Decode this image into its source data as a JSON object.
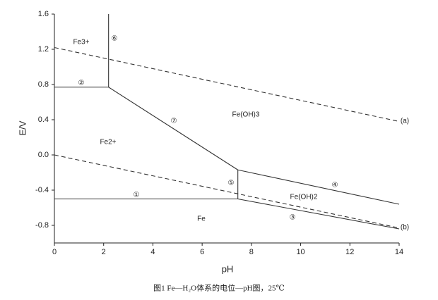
{
  "chart_data": {
    "type": "line",
    "caption": "图1  Fe—H₂O体系的电位—pH图，25℃",
    "x_label": "pH",
    "y_label": "E/V",
    "xlim": [
      0,
      14
    ],
    "xticks": [
      0,
      2,
      4,
      6,
      8,
      10,
      12,
      14
    ],
    "ylim": [
      -1.0,
      1.6
    ],
    "yticks": [
      1.6,
      1.2,
      0.8,
      0.4,
      {
        "value": 0,
        "label": "0.0"
      },
      -0.4,
      -0.8
    ],
    "series": [
      {
        "color": "#333333",
        "dash": true,
        "x": [
          0,
          14
        ],
        "values": [
          1.22,
          0.38
        ]
      },
      {
        "color": "#333333",
        "dash": true,
        "x": [
          0,
          14
        ],
        "values": [
          0.0,
          -0.83
        ]
      },
      {
        "color": "#333333",
        "dash": false,
        "x": [
          0,
          7.45
        ],
        "values": [
          -0.5,
          -0.5
        ]
      },
      {
        "color": "#333333",
        "dash": false,
        "x": [
          0,
          2.2
        ],
        "values": [
          0.77,
          0.77
        ]
      },
      {
        "color": "#333333",
        "dash": false,
        "x": [
          2.2,
          2.2
        ],
        "values": [
          0.77,
          1.6
        ]
      },
      {
        "color": "#333333",
        "dash": false,
        "x": [
          2.2,
          7.45
        ],
        "values": [
          0.77,
          -0.17
        ]
      },
      {
        "color": "#333333",
        "dash": false,
        "x": [
          7.45,
          7.45
        ],
        "values": [
          -0.5,
          -0.17
        ]
      },
      {
        "color": "#333333",
        "dash": false,
        "x": [
          7.45,
          14
        ],
        "values": [
          -0.17,
          -0.56
        ]
      },
      {
        "color": "#333333",
        "dash": false,
        "x": [
          7.45,
          14
        ],
        "values": [
          -0.5,
          -0.84
        ]
      }
    ],
    "annotations": [
      "Fe3+",
      "⑥",
      "②",
      "⑦",
      "Fe(OH)3",
      "(a)",
      "Fe2+",
      "⑤",
      "④",
      "①",
      "Fe(OH)2",
      "③",
      "Fe",
      "(b)"
    ]
  }
}
